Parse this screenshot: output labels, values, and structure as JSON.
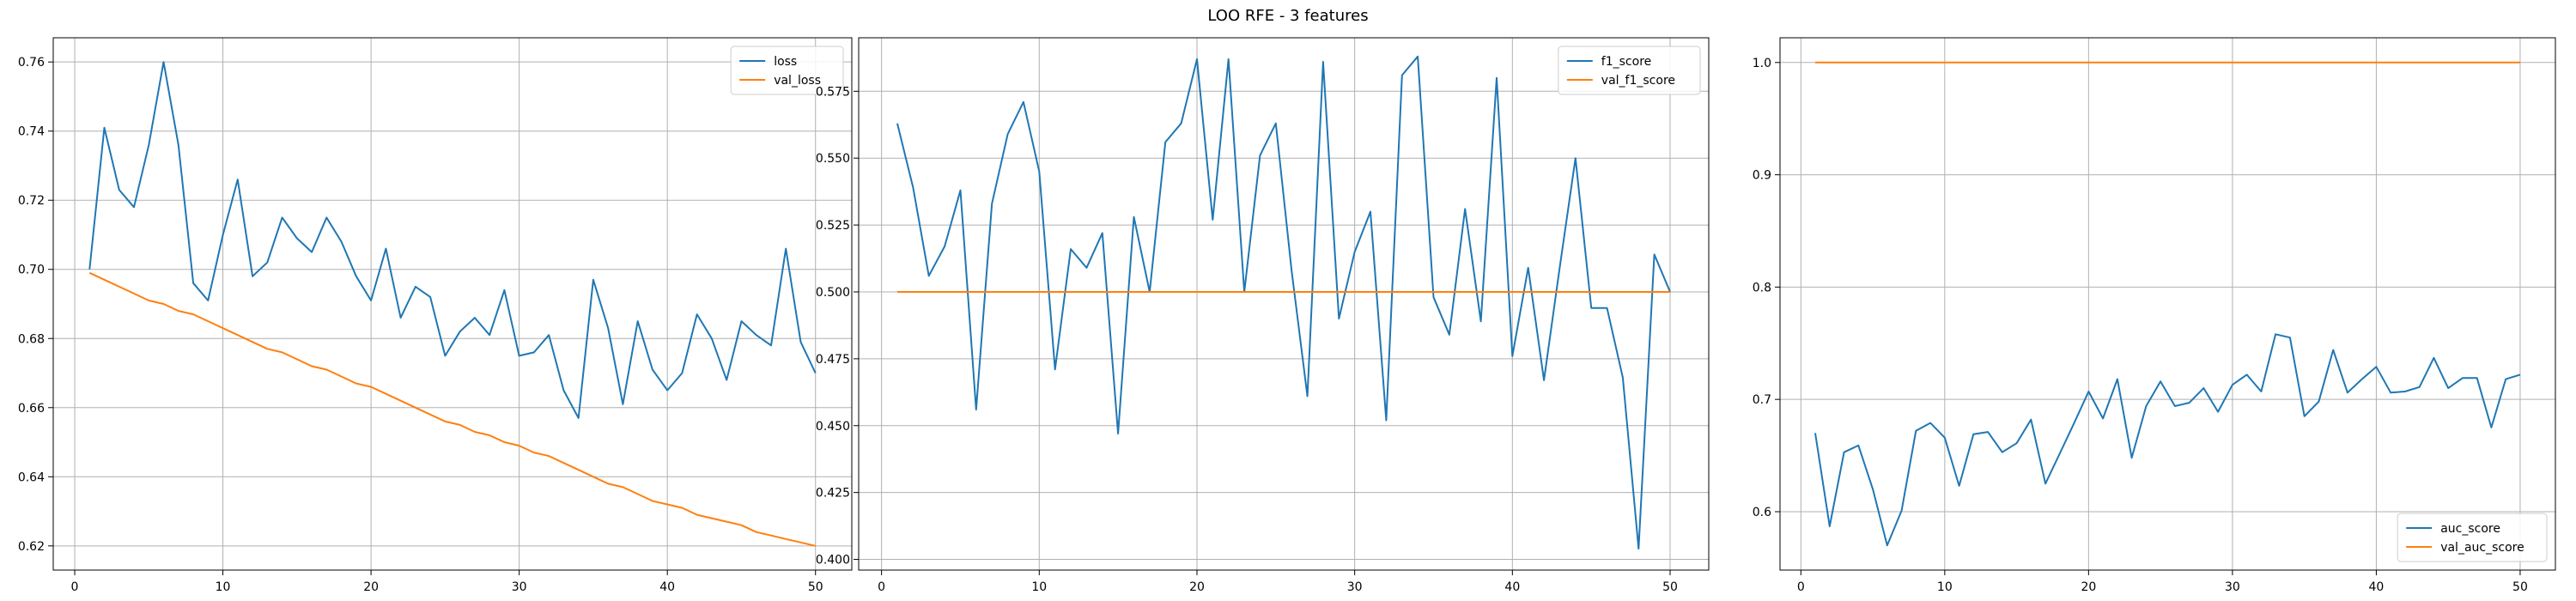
{
  "figure": {
    "title": "LOO RFE - 3 features"
  },
  "colors": {
    "blue": "#1f77b4",
    "orange": "#ff7f0e",
    "grid": "#b0b0b0"
  },
  "chart_data": [
    {
      "type": "line",
      "title": "",
      "xlim": [
        -1.45,
        52.45
      ],
      "ylim": [
        0.613,
        0.767
      ],
      "xticks": [
        0,
        10,
        20,
        30,
        40,
        50
      ],
      "yticks": [
        0.62,
        0.64,
        0.66,
        0.68,
        0.7,
        0.72,
        0.74,
        0.76
      ],
      "grid": true,
      "legend_position": "top-right",
      "x": [
        1,
        2,
        3,
        4,
        5,
        6,
        7,
        8,
        9,
        10,
        11,
        12,
        13,
        14,
        15,
        16,
        17,
        18,
        19,
        20,
        21,
        22,
        23,
        24,
        25,
        26,
        27,
        28,
        29,
        30,
        31,
        32,
        33,
        34,
        35,
        36,
        37,
        38,
        39,
        40,
        41,
        42,
        43,
        44,
        45,
        46,
        47,
        48,
        49,
        50
      ],
      "series": [
        {
          "name": "loss",
          "color": "blue",
          "values": [
            0.7,
            0.741,
            0.723,
            0.718,
            0.736,
            0.76,
            0.736,
            0.696,
            0.691,
            0.71,
            0.726,
            0.698,
            0.702,
            0.715,
            0.709,
            0.705,
            0.715,
            0.708,
            0.698,
            0.691,
            0.706,
            0.686,
            0.695,
            0.692,
            0.675,
            0.682,
            0.686,
            0.681,
            0.694,
            0.675,
            0.676,
            0.681,
            0.665,
            0.657,
            0.697,
            0.683,
            0.661,
            0.685,
            0.671,
            0.665,
            0.67,
            0.687,
            0.68,
            0.668,
            0.685,
            0.681,
            0.678,
            0.706,
            0.679,
            0.67
          ]
        },
        {
          "name": "val_loss",
          "color": "orange",
          "values": [
            0.699,
            0.697,
            0.695,
            0.693,
            0.691,
            0.69,
            0.688,
            0.687,
            0.685,
            0.683,
            0.681,
            0.679,
            0.677,
            0.676,
            0.674,
            0.672,
            0.671,
            0.669,
            0.667,
            0.666,
            0.664,
            0.662,
            0.66,
            0.658,
            0.656,
            0.655,
            0.653,
            0.652,
            0.65,
            0.649,
            0.647,
            0.646,
            0.644,
            0.642,
            0.64,
            0.638,
            0.637,
            0.635,
            0.633,
            0.632,
            0.631,
            0.629,
            0.628,
            0.627,
            0.626,
            0.624,
            0.623,
            0.622,
            0.621,
            0.62
          ]
        }
      ]
    },
    {
      "type": "line",
      "title": "",
      "xlim": [
        -1.45,
        52.45
      ],
      "ylim": [
        0.396,
        0.595
      ],
      "xticks": [
        0,
        10,
        20,
        30,
        40,
        50
      ],
      "yticks": [
        0.4,
        0.425,
        0.45,
        0.475,
        0.5,
        0.525,
        0.55,
        0.575
      ],
      "grid": true,
      "legend_position": "top-right",
      "x": [
        1,
        2,
        3,
        4,
        5,
        6,
        7,
        8,
        9,
        10,
        11,
        12,
        13,
        14,
        15,
        16,
        17,
        18,
        19,
        20,
        21,
        22,
        23,
        24,
        25,
        26,
        27,
        28,
        29,
        30,
        31,
        32,
        33,
        34,
        35,
        36,
        37,
        38,
        39,
        40,
        41,
        42,
        43,
        44,
        45,
        46,
        47,
        48,
        49,
        50
      ],
      "series": [
        {
          "name": "f1_score",
          "color": "blue",
          "values": [
            0.563,
            0.539,
            0.506,
            0.517,
            0.538,
            0.456,
            0.533,
            0.559,
            0.571,
            0.545,
            0.471,
            0.516,
            0.509,
            0.522,
            0.447,
            0.528,
            0.5,
            0.556,
            0.563,
            0.587,
            0.527,
            0.587,
            0.5,
            0.551,
            0.563,
            0.508,
            0.461,
            0.586,
            0.49,
            0.515,
            0.53,
            0.452,
            0.581,
            0.588,
            0.498,
            0.484,
            0.531,
            0.489,
            0.58,
            0.476,
            0.509,
            0.467,
            0.509,
            0.55,
            0.494,
            0.494,
            0.468,
            0.404,
            0.514,
            0.5
          ]
        },
        {
          "name": "val_f1_score",
          "color": "orange",
          "values": [
            0.5,
            0.5,
            0.5,
            0.5,
            0.5,
            0.5,
            0.5,
            0.5,
            0.5,
            0.5,
            0.5,
            0.5,
            0.5,
            0.5,
            0.5,
            0.5,
            0.5,
            0.5,
            0.5,
            0.5,
            0.5,
            0.5,
            0.5,
            0.5,
            0.5,
            0.5,
            0.5,
            0.5,
            0.5,
            0.5,
            0.5,
            0.5,
            0.5,
            0.5,
            0.5,
            0.5,
            0.5,
            0.5,
            0.5,
            0.5,
            0.5,
            0.5,
            0.5,
            0.5,
            0.5,
            0.5,
            0.5,
            0.5,
            0.5,
            0.5
          ]
        }
      ]
    },
    {
      "type": "line",
      "title": "",
      "xlim": [
        -1.45,
        52.45
      ],
      "ylim": [
        0.548,
        1.022
      ],
      "xticks": [
        0,
        10,
        20,
        30,
        40,
        50
      ],
      "yticks": [
        0.6,
        0.7,
        0.8,
        0.9,
        1.0
      ],
      "grid": true,
      "legend_position": "bottom-right",
      "x": [
        1,
        2,
        3,
        4,
        5,
        6,
        7,
        8,
        9,
        10,
        11,
        12,
        13,
        14,
        15,
        16,
        17,
        18,
        19,
        20,
        21,
        22,
        23,
        24,
        25,
        26,
        27,
        28,
        29,
        30,
        31,
        32,
        33,
        34,
        35,
        36,
        37,
        38,
        39,
        40,
        41,
        42,
        43,
        44,
        45,
        46,
        47,
        48,
        49,
        50
      ],
      "series": [
        {
          "name": "auc_score",
          "color": "blue",
          "values": [
            0.67,
            0.587,
            0.653,
            0.659,
            0.62,
            0.57,
            0.601,
            0.672,
            0.679,
            0.666,
            0.623,
            0.669,
            0.671,
            0.653,
            0.661,
            0.682,
            0.625,
            0.652,
            0.679,
            0.707,
            0.683,
            0.718,
            0.648,
            0.694,
            0.716,
            0.694,
            0.697,
            0.71,
            0.689,
            0.713,
            0.722,
            0.707,
            0.758,
            0.755,
            0.685,
            0.698,
            0.744,
            0.706,
            0.718,
            0.729,
            0.706,
            0.707,
            0.711,
            0.737,
            0.71,
            0.719,
            0.719,
            0.675,
            0.718,
            0.722
          ]
        },
        {
          "name": "val_auc_score",
          "color": "orange",
          "values": [
            1,
            1,
            1,
            1,
            1,
            1,
            1,
            1,
            1,
            1,
            1,
            1,
            1,
            1,
            1,
            1,
            1,
            1,
            1,
            1,
            1,
            1,
            1,
            1,
            1,
            1,
            1,
            1,
            1,
            1,
            1,
            1,
            1,
            1,
            1,
            1,
            1,
            1,
            1,
            1,
            1,
            1,
            1,
            1,
            1,
            1,
            1,
            1,
            1,
            1
          ]
        }
      ]
    }
  ]
}
